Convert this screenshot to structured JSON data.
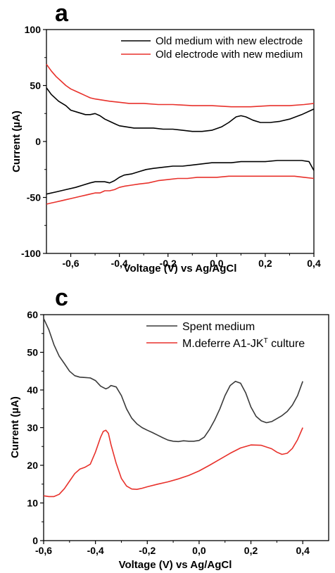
{
  "chart_data": [
    {
      "panel": "a",
      "type": "line",
      "xlabel": "Voltage (V) vs Ag/AgCl",
      "ylabel": "Current (µA)",
      "xlim": [
        -0.7,
        0.4
      ],
      "ylim": [
        -100,
        100
      ],
      "xticks": [
        -0.6,
        -0.4,
        -0.2,
        0.0,
        0.2,
        0.4
      ],
      "xtick_labels": [
        "-0,6",
        "-0,4",
        "-0,2",
        "0,0",
        "0,2",
        "0,4"
      ],
      "yticks": [
        -100,
        -50,
        0,
        50,
        100
      ],
      "ytick_labels": [
        "-100",
        "-50",
        "0",
        "50",
        "100"
      ],
      "legend_position": "top-right",
      "series": [
        {
          "name": "Old medium with new electrode",
          "color": "#000000",
          "segments": [
            [
              [
                -0.7,
                48
              ],
              [
                -0.68,
                42
              ],
              [
                -0.65,
                36
              ],
              [
                -0.62,
                32
              ],
              [
                -0.6,
                28
              ],
              [
                -0.57,
                26
              ],
              [
                -0.54,
                24
              ],
              [
                -0.52,
                24
              ],
              [
                -0.5,
                25
              ],
              [
                -0.48,
                23
              ],
              [
                -0.46,
                20
              ],
              [
                -0.44,
                18
              ],
              [
                -0.42,
                16
              ],
              [
                -0.4,
                14
              ],
              [
                -0.37,
                13
              ],
              [
                -0.34,
                12
              ],
              [
                -0.3,
                12
              ],
              [
                -0.26,
                12
              ],
              [
                -0.22,
                11
              ],
              [
                -0.18,
                11
              ],
              [
                -0.14,
                10
              ],
              [
                -0.1,
                9
              ],
              [
                -0.06,
                9
              ],
              [
                -0.02,
                10
              ],
              [
                0.02,
                13
              ],
              [
                0.05,
                17
              ],
              [
                0.08,
                22
              ],
              [
                0.1,
                23
              ],
              [
                0.12,
                22
              ],
              [
                0.15,
                19
              ],
              [
                0.18,
                17
              ],
              [
                0.22,
                17
              ],
              [
                0.26,
                18
              ],
              [
                0.3,
                20
              ],
              [
                0.35,
                24
              ],
              [
                0.4,
                29
              ]
            ],
            [
              [
                -0.7,
                -47
              ],
              [
                -0.66,
                -45
              ],
              [
                -0.62,
                -43
              ],
              [
                -0.58,
                -41
              ],
              [
                -0.55,
                -39
              ],
              [
                -0.52,
                -37
              ],
              [
                -0.5,
                -36
              ],
              [
                -0.48,
                -36
              ],
              [
                -0.46,
                -36
              ],
              [
                -0.44,
                -37
              ],
              [
                -0.42,
                -35
              ],
              [
                -0.4,
                -32
              ],
              [
                -0.38,
                -30
              ],
              [
                -0.35,
                -29
              ],
              [
                -0.32,
                -27
              ],
              [
                -0.29,
                -25
              ],
              [
                -0.26,
                -24
              ],
              [
                -0.22,
                -23
              ],
              [
                -0.18,
                -22
              ],
              [
                -0.14,
                -22
              ],
              [
                -0.1,
                -21
              ],
              [
                -0.06,
                -20
              ],
              [
                -0.02,
                -19
              ],
              [
                0.02,
                -19
              ],
              [
                0.06,
                -19
              ],
              [
                0.1,
                -18
              ],
              [
                0.15,
                -18
              ],
              [
                0.2,
                -18
              ],
              [
                0.25,
                -17
              ],
              [
                0.3,
                -17
              ],
              [
                0.35,
                -17
              ],
              [
                0.38,
                -18
              ],
              [
                0.4,
                -26
              ]
            ]
          ]
        },
        {
          "name": "Old electrode with new medium",
          "color": "#e8312b",
          "segments": [
            [
              [
                -0.7,
                69
              ],
              [
                -0.68,
                63
              ],
              [
                -0.66,
                58
              ],
              [
                -0.64,
                54
              ],
              [
                -0.62,
                50
              ],
              [
                -0.6,
                47
              ],
              [
                -0.58,
                45
              ],
              [
                -0.56,
                43
              ],
              [
                -0.54,
                41
              ],
              [
                -0.52,
                39
              ],
              [
                -0.5,
                38
              ],
              [
                -0.47,
                37
              ],
              [
                -0.44,
                36
              ],
              [
                -0.4,
                35
              ],
              [
                -0.36,
                34
              ],
              [
                -0.3,
                34
              ],
              [
                -0.24,
                33
              ],
              [
                -0.18,
                33
              ],
              [
                -0.1,
                32
              ],
              [
                -0.02,
                32
              ],
              [
                0.06,
                31
              ],
              [
                0.14,
                31
              ],
              [
                0.22,
                32
              ],
              [
                0.3,
                32
              ],
              [
                0.36,
                33
              ],
              [
                0.4,
                34
              ]
            ],
            [
              [
                -0.7,
                -56
              ],
              [
                -0.68,
                -55
              ],
              [
                -0.66,
                -54
              ],
              [
                -0.64,
                -53
              ],
              [
                -0.62,
                -52
              ],
              [
                -0.6,
                -51
              ],
              [
                -0.58,
                -50
              ],
              [
                -0.56,
                -49
              ],
              [
                -0.54,
                -48
              ],
              [
                -0.52,
                -47
              ],
              [
                -0.5,
                -46
              ],
              [
                -0.48,
                -46
              ],
              [
                -0.46,
                -44
              ],
              [
                -0.44,
                -44
              ],
              [
                -0.42,
                -43
              ],
              [
                -0.4,
                -41
              ],
              [
                -0.38,
                -40
              ],
              [
                -0.35,
                -39
              ],
              [
                -0.32,
                -38
              ],
              [
                -0.28,
                -37
              ],
              [
                -0.24,
                -35
              ],
              [
                -0.2,
                -34
              ],
              [
                -0.16,
                -33
              ],
              [
                -0.12,
                -33
              ],
              [
                -0.08,
                -32
              ],
              [
                -0.04,
                -32
              ],
              [
                0.0,
                -32
              ],
              [
                0.05,
                -31
              ],
              [
                0.1,
                -31
              ],
              [
                0.15,
                -31
              ],
              [
                0.2,
                -31
              ],
              [
                0.26,
                -31
              ],
              [
                0.32,
                -31
              ],
              [
                0.36,
                -32
              ],
              [
                0.4,
                -33
              ]
            ]
          ]
        }
      ]
    },
    {
      "panel": "c",
      "type": "line",
      "xlabel": "Voltage (V) vs Ag/AgCl",
      "ylabel": "Current (µA)",
      "xlim": [
        -0.6,
        0.5
      ],
      "ylim": [
        0,
        60
      ],
      "xticks": [
        -0.6,
        -0.4,
        -0.2,
        0.0,
        0.2,
        0.4
      ],
      "xtick_labels": [
        "-0,6",
        "-0,4",
        "-0,2",
        "0,0",
        "0,2",
        "0,4"
      ],
      "yticks": [
        0,
        10,
        20,
        30,
        40,
        50,
        60
      ],
      "ytick_labels": [
        "0",
        "10",
        "20",
        "30",
        "40",
        "50",
        "60"
      ],
      "legend_position": "top-right",
      "series": [
        {
          "name": "Spent medium",
          "color": "#3a3a3a",
          "segments": [
            [
              [
                -0.6,
                59
              ],
              [
                -0.58,
                56
              ],
              [
                -0.56,
                52
              ],
              [
                -0.54,
                49
              ],
              [
                -0.52,
                47
              ],
              [
                -0.5,
                45
              ],
              [
                -0.48,
                43.8
              ],
              [
                -0.46,
                43.4
              ],
              [
                -0.44,
                43.3
              ],
              [
                -0.42,
                43.2
              ],
              [
                -0.4,
                42.5
              ],
              [
                -0.38,
                41
              ],
              [
                -0.36,
                40.3
              ],
              [
                -0.35,
                40.6
              ],
              [
                -0.34,
                41.2
              ],
              [
                -0.32,
                40.8
              ],
              [
                -0.3,
                38.5
              ],
              [
                -0.28,
                35
              ],
              [
                -0.26,
                32.5
              ],
              [
                -0.24,
                31
              ],
              [
                -0.22,
                30
              ],
              [
                -0.2,
                29.3
              ],
              [
                -0.18,
                28.7
              ],
              [
                -0.16,
                28
              ],
              [
                -0.14,
                27.3
              ],
              [
                -0.12,
                26.7
              ],
              [
                -0.1,
                26.4
              ],
              [
                -0.08,
                26.3
              ],
              [
                -0.06,
                26.5
              ],
              [
                -0.04,
                26.4
              ],
              [
                -0.02,
                26.4
              ],
              [
                0.0,
                26.6
              ],
              [
                0.02,
                27.5
              ],
              [
                0.04,
                29.5
              ],
              [
                0.06,
                32
              ],
              [
                0.08,
                35
              ],
              [
                0.1,
                38.5
              ],
              [
                0.12,
                41.2
              ],
              [
                0.14,
                42.3
              ],
              [
                0.16,
                41.8
              ],
              [
                0.18,
                39.2
              ],
              [
                0.2,
                35.5
              ],
              [
                0.22,
                33
              ],
              [
                0.24,
                31.8
              ],
              [
                0.26,
                31.3
              ],
              [
                0.28,
                31.6
              ],
              [
                0.3,
                32.4
              ],
              [
                0.32,
                33.2
              ],
              [
                0.34,
                34.3
              ],
              [
                0.36,
                36
              ],
              [
                0.38,
                38.5
              ],
              [
                0.4,
                42.3
              ]
            ]
          ]
        },
        {
          "name": "M.deferre A1-JK",
          "name_superscript": "T",
          "name_suffix": " culture",
          "color": "#e8312b",
          "segments": [
            [
              [
                -0.6,
                11.9
              ],
              [
                -0.58,
                11.7
              ],
              [
                -0.56,
                11.7
              ],
              [
                -0.54,
                12.3
              ],
              [
                -0.52,
                13.8
              ],
              [
                -0.5,
                15.8
              ],
              [
                -0.48,
                17.8
              ],
              [
                -0.46,
                19
              ],
              [
                -0.44,
                19.5
              ],
              [
                -0.42,
                20.3
              ],
              [
                -0.4,
                23.5
              ],
              [
                -0.38,
                27.5
              ],
              [
                -0.37,
                29
              ],
              [
                -0.36,
                29.3
              ],
              [
                -0.35,
                28.5
              ],
              [
                -0.34,
                25.5
              ],
              [
                -0.32,
                20.5
              ],
              [
                -0.3,
                16.5
              ],
              [
                -0.28,
                14.5
              ],
              [
                -0.26,
                13.7
              ],
              [
                -0.24,
                13.6
              ],
              [
                -0.22,
                13.9
              ],
              [
                -0.2,
                14.3
              ],
              [
                -0.16,
                15
              ],
              [
                -0.12,
                15.6
              ],
              [
                -0.08,
                16.4
              ],
              [
                -0.04,
                17.3
              ],
              [
                0.0,
                18.5
              ],
              [
                0.04,
                20
              ],
              [
                0.08,
                21.6
              ],
              [
                0.12,
                23.2
              ],
              [
                0.16,
                24.6
              ],
              [
                0.2,
                25.4
              ],
              [
                0.24,
                25.3
              ],
              [
                0.28,
                24.4
              ],
              [
                0.3,
                23.5
              ],
              [
                0.32,
                22.9
              ],
              [
                0.34,
                23.2
              ],
              [
                0.36,
                24.5
              ],
              [
                0.38,
                26.8
              ],
              [
                0.4,
                30
              ]
            ]
          ]
        }
      ]
    }
  ]
}
